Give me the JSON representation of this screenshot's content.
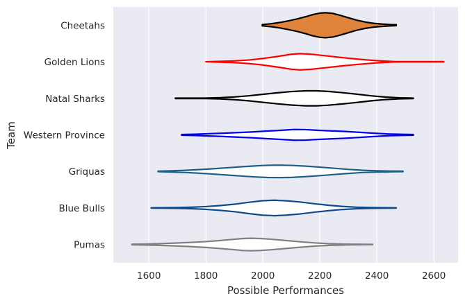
{
  "chart_data": {
    "type": "violin",
    "orientation": "horizontal",
    "xlabel": "Possible Performances",
    "ylabel": "Team",
    "xlim": [
      1475,
      2685
    ],
    "xticks": [
      1600,
      1800,
      2000,
      2200,
      2400,
      2600
    ],
    "grid": true,
    "legend": "none",
    "background": "#eaeaf2",
    "series": [
      {
        "name": "Cheetahs",
        "color": "#000000",
        "fill": "#e0843d",
        "profile": [
          [
            1998,
            0.05
          ],
          [
            2030,
            0.12
          ],
          [
            2060,
            0.22
          ],
          [
            2090,
            0.35
          ],
          [
            2120,
            0.5
          ],
          [
            2150,
            0.68
          ],
          [
            2175,
            0.85
          ],
          [
            2200,
            0.97
          ],
          [
            2220,
            1.0
          ],
          [
            2245,
            0.95
          ],
          [
            2270,
            0.8
          ],
          [
            2300,
            0.6
          ],
          [
            2330,
            0.4
          ],
          [
            2360,
            0.25
          ],
          [
            2390,
            0.15
          ],
          [
            2420,
            0.09
          ],
          [
            2450,
            0.05
          ],
          [
            2468,
            0.04
          ]
        ]
      },
      {
        "name": "Golden Lions",
        "color": "#ff0000",
        "fill": "#ffffff",
        "profile": [
          [
            1800,
            0.0
          ],
          [
            1850,
            0.03
          ],
          [
            1900,
            0.07
          ],
          [
            1950,
            0.14
          ],
          [
            2000,
            0.26
          ],
          [
            2050,
            0.42
          ],
          [
            2100,
            0.6
          ],
          [
            2130,
            0.65
          ],
          [
            2170,
            0.6
          ],
          [
            2220,
            0.48
          ],
          [
            2270,
            0.35
          ],
          [
            2320,
            0.24
          ],
          [
            2370,
            0.14
          ],
          [
            2420,
            0.06
          ],
          [
            2460,
            0.02
          ],
          [
            2500,
            0.01
          ],
          [
            2560,
            0.01
          ],
          [
            2635,
            0.01
          ]
        ]
      },
      {
        "name": "Natal Sharks",
        "color": "#000000",
        "fill": "#ffffff",
        "profile": [
          [
            1693,
            0.02
          ],
          [
            1750,
            0.02
          ],
          [
            1800,
            0.02
          ],
          [
            1850,
            0.05
          ],
          [
            1900,
            0.11
          ],
          [
            1950,
            0.2
          ],
          [
            2000,
            0.32
          ],
          [
            2050,
            0.44
          ],
          [
            2100,
            0.54
          ],
          [
            2150,
            0.6
          ],
          [
            2190,
            0.6
          ],
          [
            2230,
            0.55
          ],
          [
            2280,
            0.45
          ],
          [
            2330,
            0.33
          ],
          [
            2380,
            0.2
          ],
          [
            2430,
            0.1
          ],
          [
            2480,
            0.04
          ],
          [
            2528,
            0.02
          ]
        ]
      },
      {
        "name": "Western Province",
        "color": "#0000ee",
        "fill": "#ffffff",
        "profile": [
          [
            1715,
            0.03
          ],
          [
            1760,
            0.05
          ],
          [
            1810,
            0.09
          ],
          [
            1860,
            0.13
          ],
          [
            1910,
            0.18
          ],
          [
            1960,
            0.23
          ],
          [
            2010,
            0.3
          ],
          [
            2060,
            0.36
          ],
          [
            2110,
            0.43
          ],
          [
            2150,
            0.42
          ],
          [
            2190,
            0.37
          ],
          [
            2240,
            0.32
          ],
          [
            2290,
            0.27
          ],
          [
            2340,
            0.2
          ],
          [
            2390,
            0.13
          ],
          [
            2440,
            0.07
          ],
          [
            2490,
            0.04
          ],
          [
            2528,
            0.03
          ]
        ]
      },
      {
        "name": "Griquas",
        "color": "#1f5f84",
        "fill": "#ffffff",
        "profile": [
          [
            1632,
            0.02
          ],
          [
            1680,
            0.05
          ],
          [
            1730,
            0.09
          ],
          [
            1780,
            0.15
          ],
          [
            1830,
            0.22
          ],
          [
            1880,
            0.3
          ],
          [
            1930,
            0.38
          ],
          [
            1980,
            0.45
          ],
          [
            2020,
            0.49
          ],
          [
            2060,
            0.5
          ],
          [
            2100,
            0.48
          ],
          [
            2150,
            0.42
          ],
          [
            2200,
            0.34
          ],
          [
            2250,
            0.25
          ],
          [
            2300,
            0.16
          ],
          [
            2350,
            0.09
          ],
          [
            2400,
            0.05
          ],
          [
            2450,
            0.03
          ],
          [
            2492,
            0.02
          ]
        ]
      },
      {
        "name": "Blue Bulls",
        "color": "#114a8a",
        "fill": "#ffffff",
        "profile": [
          [
            1608,
            0.01
          ],
          [
            1650,
            0.02
          ],
          [
            1700,
            0.03
          ],
          [
            1750,
            0.06
          ],
          [
            1800,
            0.11
          ],
          [
            1850,
            0.19
          ],
          [
            1900,
            0.3
          ],
          [
            1950,
            0.45
          ],
          [
            2000,
            0.58
          ],
          [
            2040,
            0.62
          ],
          [
            2080,
            0.58
          ],
          [
            2130,
            0.48
          ],
          [
            2180,
            0.34
          ],
          [
            2230,
            0.22
          ],
          [
            2280,
            0.12
          ],
          [
            2330,
            0.06
          ],
          [
            2380,
            0.03
          ],
          [
            2430,
            0.02
          ],
          [
            2468,
            0.01
          ]
        ]
      },
      {
        "name": "Pumas",
        "color": "#808080",
        "fill": "#ffffff",
        "profile": [
          [
            1540,
            0.02
          ],
          [
            1590,
            0.04
          ],
          [
            1640,
            0.07
          ],
          [
            1690,
            0.11
          ],
          [
            1740,
            0.16
          ],
          [
            1790,
            0.22
          ],
          [
            1840,
            0.3
          ],
          [
            1890,
            0.4
          ],
          [
            1930,
            0.48
          ],
          [
            1960,
            0.5
          ],
          [
            1990,
            0.48
          ],
          [
            2030,
            0.42
          ],
          [
            2080,
            0.32
          ],
          [
            2130,
            0.22
          ],
          [
            2180,
            0.13
          ],
          [
            2230,
            0.07
          ],
          [
            2280,
            0.04
          ],
          [
            2330,
            0.02
          ],
          [
            2385,
            0.01
          ]
        ]
      }
    ]
  }
}
